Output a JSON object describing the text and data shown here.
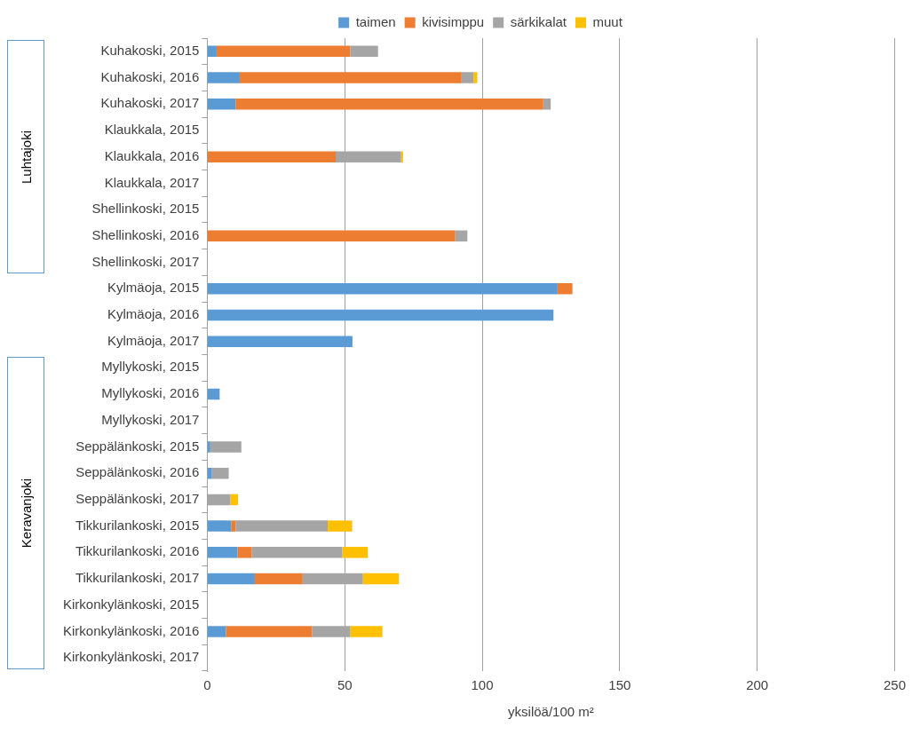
{
  "chart_data": {
    "type": "bar",
    "orientation": "horizontal",
    "stacked": true,
    "xlabel": "yksilöä/100 m²",
    "categories": [
      "Kuhakoski, 2015",
      "Kuhakoski, 2016",
      "Kuhakoski, 2017",
      "Klaukkala, 2015",
      "Klaukkala, 2016",
      "Klaukkala, 2017",
      "Shellinkoski, 2015",
      "Shellinkoski, 2016",
      "Shellinkoski, 2017",
      "Kylmäoja, 2015",
      "Kylmäoja, 2016",
      "Kylmäoja, 2017",
      "Myllykoski, 2015",
      "Myllykoski, 2016",
      "Myllykoski, 2017",
      "Seppälänkoski, 2015",
      "Seppälänkoski, 2016",
      "Seppälänkoski, 2017",
      "Tikkurilankoski, 2015",
      "Tikkurilankoski, 2016",
      "Tikkurilankoski, 2017",
      "Kirkonkylänkoski, 2015",
      "Kirkonkylänkoski, 2016",
      "Kirkonkylänkoski, 2017"
    ],
    "series": [
      {
        "name": "taimen",
        "color": "#5b9bd5",
        "values": [
          3.4,
          11.8,
          10.3,
          null,
          null,
          null,
          null,
          null,
          null,
          127.4,
          125.9,
          52.8,
          null,
          4.5,
          null,
          1.1,
          1.7,
          null,
          8.7,
          11.0,
          17.3,
          null,
          6.8,
          null
        ]
      },
      {
        "name": "kivisimppu",
        "color": "#ed7d31",
        "values": [
          48.6,
          80.7,
          111.9,
          null,
          46.7,
          null,
          null,
          90.2,
          null,
          5.4,
          null,
          null,
          null,
          null,
          null,
          null,
          null,
          null,
          1.6,
          5.2,
          17.4,
          null,
          31.3,
          null
        ]
      },
      {
        "name": "särkikalat",
        "color": "#a5a5a5",
        "values": [
          10.1,
          4.3,
          2.7,
          null,
          23.8,
          null,
          null,
          4.4,
          null,
          null,
          null,
          null,
          null,
          null,
          null,
          11.3,
          6.1,
          8.4,
          33.5,
          32.9,
          21.9,
          null,
          13.9,
          null
        ]
      },
      {
        "name": "muut",
        "color": "#ffc000",
        "values": [
          null,
          1.4,
          null,
          null,
          0.7,
          null,
          null,
          null,
          null,
          null,
          null,
          null,
          null,
          null,
          null,
          null,
          null,
          2.8,
          8.9,
          9.3,
          13.1,
          null,
          11.7,
          null
        ]
      }
    ],
    "xlim": [
      0,
      250
    ],
    "xticks": [
      0,
      50,
      100,
      150,
      200,
      250
    ],
    "grid": "x",
    "legend": "top",
    "annotations": [
      "Luhtajoki",
      "Keravanjoki"
    ]
  }
}
